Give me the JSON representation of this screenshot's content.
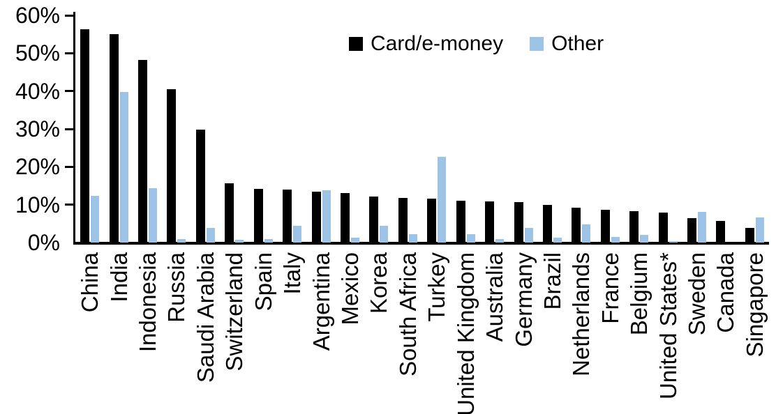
{
  "chart_data": {
    "type": "bar",
    "categories": [
      "China",
      "India",
      "Indonesia",
      "Russia",
      "Saudi Arabia",
      "Switzerland",
      "Spain",
      "Italy",
      "Argentina",
      "Mexico",
      "Korea",
      "South Africa",
      "Turkey",
      "United Kingdom",
      "Australia",
      "Germany",
      "Brazil",
      "Netherlands",
      "France",
      "Belgium",
      "United States*",
      "Sweden",
      "Canada",
      "Singapore"
    ],
    "series": [
      {
        "name": "Card/e-money",
        "color": "#000000",
        "values": [
          56.3,
          55.0,
          48.2,
          40.5,
          29.8,
          15.6,
          14.1,
          14.0,
          13.4,
          13.0,
          12.2,
          11.7,
          11.6,
          11.0,
          10.8,
          10.6,
          10.0,
          9.2,
          8.7,
          8.2,
          7.9,
          6.4,
          5.8,
          3.8
        ]
      },
      {
        "name": "Other",
        "color": "#9DC3E6",
        "values": [
          12.3,
          39.8,
          14.4,
          0.9,
          3.8,
          0.8,
          0.9,
          4.5,
          13.8,
          1.2,
          4.5,
          2.3,
          22.6,
          2.2,
          1.0,
          3.9,
          1.2,
          4.8,
          1.5,
          2.1,
          0.3,
          8.1,
          0.0,
          6.6
        ]
      }
    ],
    "title": "",
    "xlabel": "",
    "ylabel": "",
    "ylim": [
      0,
      60
    ],
    "ytick_step": 10,
    "yticks": [
      "0%",
      "10%",
      "20%",
      "30%",
      "40%",
      "50%",
      "60%"
    ],
    "grid": false,
    "legend_position": "top-center",
    "axis_color": "#000000"
  }
}
